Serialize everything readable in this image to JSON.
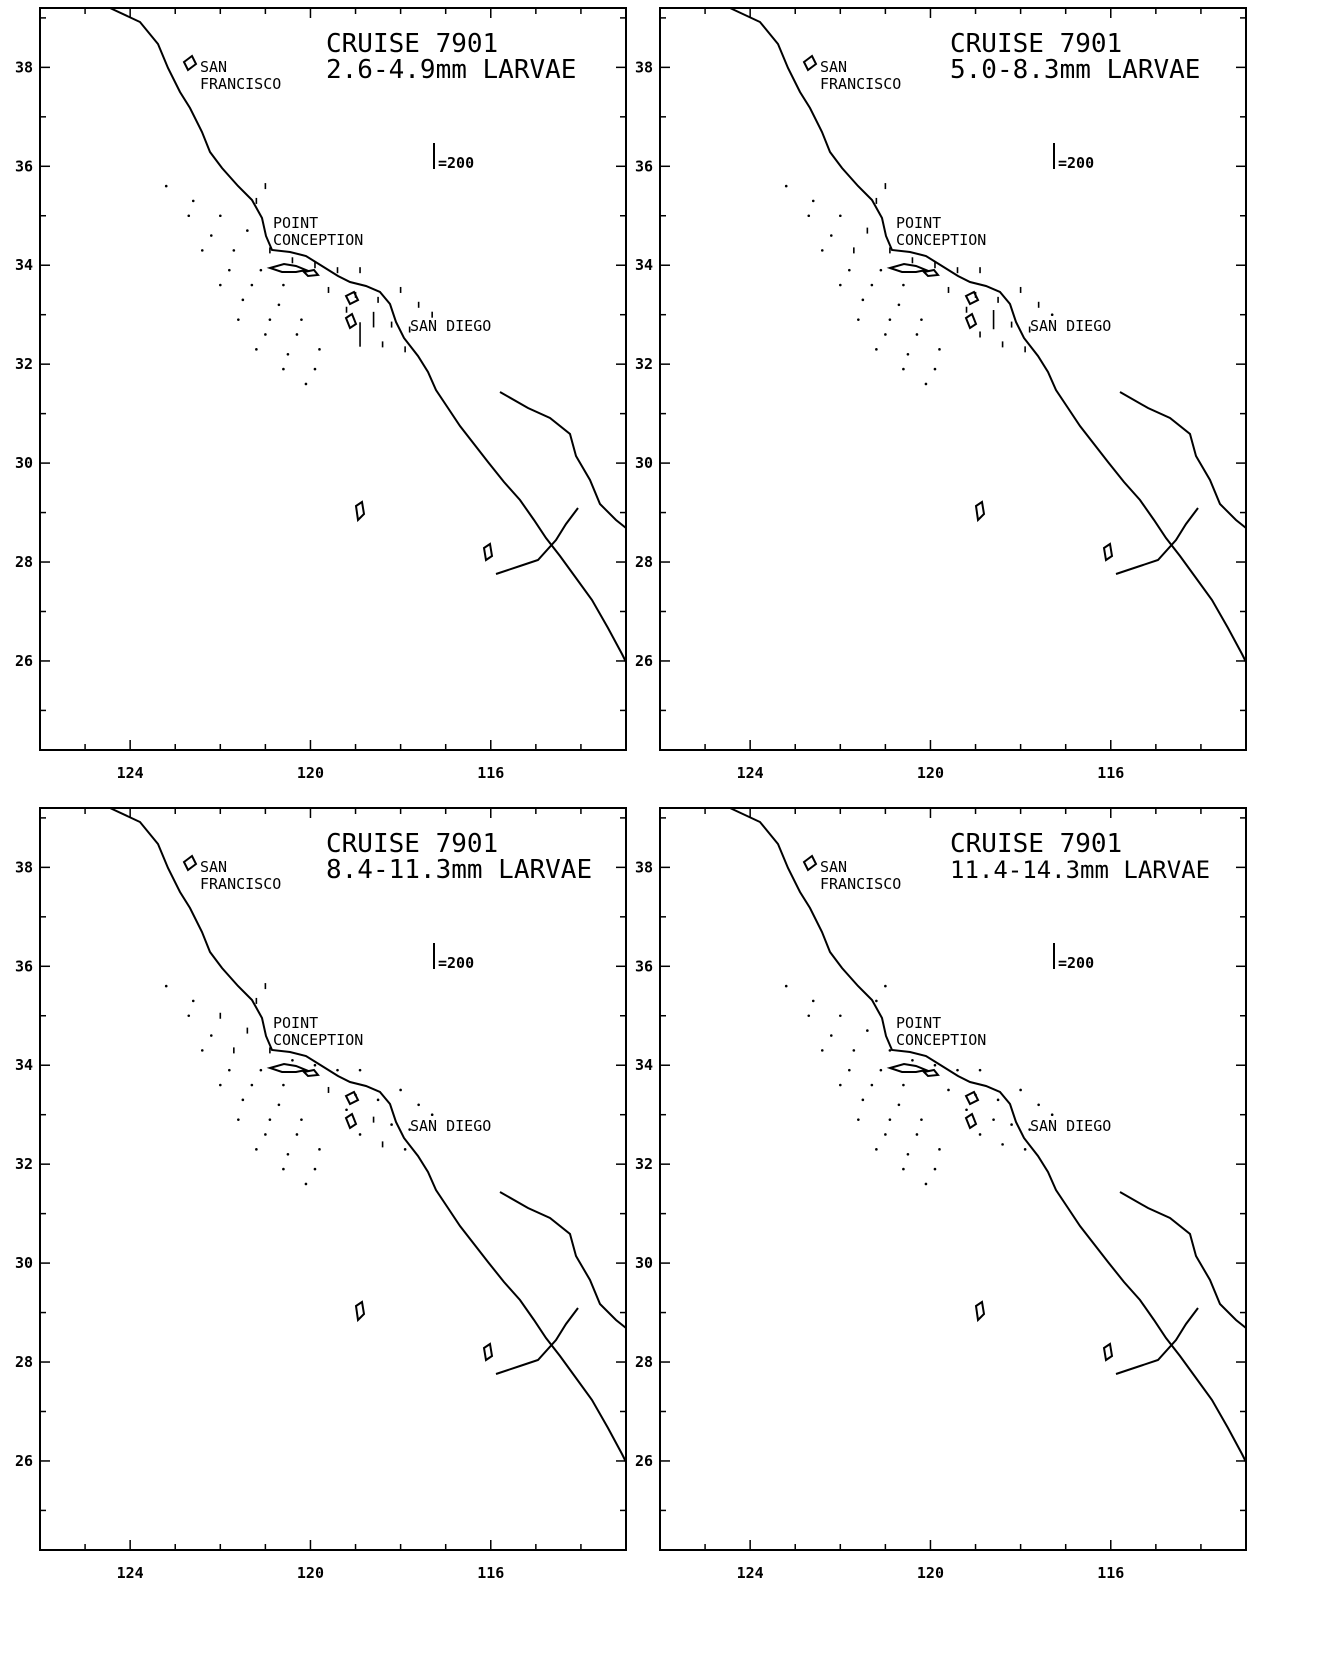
{
  "figure": {
    "panels": [
      {
        "cruise_label": "CRUISE 7901",
        "size_label": "2.6-4.9mm LARVAE",
        "stations": [
          [
            -123.2,
            35.6,
            0
          ],
          [
            -122.6,
            35.3,
            0
          ],
          [
            -122.0,
            35.0,
            0
          ],
          [
            -121.4,
            34.7,
            0
          ],
          [
            -121.2,
            35.3,
            3
          ],
          [
            -121.0,
            35.6,
            5
          ],
          [
            -122.7,
            35.0,
            0
          ],
          [
            -122.2,
            34.6,
            0
          ],
          [
            -121.7,
            34.3,
            0
          ],
          [
            -121.1,
            33.9,
            0
          ],
          [
            -120.6,
            33.6,
            0
          ],
          [
            -122.4,
            34.3,
            0
          ],
          [
            -121.8,
            33.9,
            0
          ],
          [
            -121.3,
            33.6,
            0
          ],
          [
            -120.7,
            33.2,
            0
          ],
          [
            -120.2,
            32.9,
            0
          ],
          [
            -122.0,
            33.6,
            0
          ],
          [
            -121.5,
            33.3,
            0
          ],
          [
            -120.9,
            32.9,
            0
          ],
          [
            -120.3,
            32.6,
            0
          ],
          [
            -119.8,
            32.3,
            0
          ],
          [
            -121.6,
            32.9,
            0
          ],
          [
            -121.0,
            32.6,
            0
          ],
          [
            -120.5,
            32.2,
            0
          ],
          [
            -119.9,
            31.9,
            0
          ],
          [
            -121.2,
            32.3,
            0
          ],
          [
            -120.6,
            31.9,
            0
          ],
          [
            -120.1,
            31.6,
            0
          ],
          [
            -120.9,
            34.3,
            4
          ],
          [
            -120.4,
            34.1,
            3
          ],
          [
            -119.9,
            34.0,
            2
          ],
          [
            -119.4,
            33.9,
            4
          ],
          [
            -118.9,
            33.9,
            3
          ],
          [
            -119.6,
            33.5,
            3
          ],
          [
            -119.0,
            33.4,
            5
          ],
          [
            -118.5,
            33.3,
            3
          ],
          [
            -118.0,
            33.5,
            5
          ],
          [
            -119.2,
            33.1,
            4
          ],
          [
            -118.6,
            32.9,
            120
          ],
          [
            -118.2,
            32.8,
            3
          ],
          [
            -117.8,
            32.7,
            4
          ],
          [
            -118.9,
            32.6,
            188
          ],
          [
            -118.4,
            32.4,
            5
          ],
          [
            -117.9,
            32.3,
            3
          ],
          [
            -117.6,
            33.2,
            4
          ],
          [
            -117.3,
            33.0,
            3
          ]
        ]
      },
      {
        "cruise_label": "CRUISE 7901",
        "size_label": "5.0-8.3mm LARVAE",
        "stations": [
          [
            -123.2,
            35.6,
            0
          ],
          [
            -122.6,
            35.3,
            0
          ],
          [
            -122.0,
            35.0,
            0
          ],
          [
            -121.4,
            34.7,
            6
          ],
          [
            -121.2,
            35.3,
            5
          ],
          [
            -121.0,
            35.6,
            8
          ],
          [
            -122.7,
            35.0,
            0
          ],
          [
            -122.2,
            34.6,
            0
          ],
          [
            -121.7,
            34.3,
            4
          ],
          [
            -121.1,
            33.9,
            0
          ],
          [
            -120.6,
            33.6,
            0
          ],
          [
            -122.4,
            34.3,
            0
          ],
          [
            -121.8,
            33.9,
            0
          ],
          [
            -121.3,
            33.6,
            0
          ],
          [
            -120.7,
            33.2,
            0
          ],
          [
            -120.2,
            32.9,
            0
          ],
          [
            -122.0,
            33.6,
            0
          ],
          [
            -121.5,
            33.3,
            0
          ],
          [
            -120.9,
            32.9,
            0
          ],
          [
            -120.3,
            32.6,
            0
          ],
          [
            -119.8,
            32.3,
            0
          ],
          [
            -121.6,
            32.9,
            0
          ],
          [
            -121.0,
            32.6,
            0
          ],
          [
            -120.5,
            32.2,
            0
          ],
          [
            -119.9,
            31.9,
            0
          ],
          [
            -121.2,
            32.3,
            0
          ],
          [
            -120.6,
            31.9,
            0
          ],
          [
            -120.1,
            31.6,
            0
          ],
          [
            -120.9,
            34.3,
            5
          ],
          [
            -120.4,
            34.1,
            4
          ],
          [
            -119.9,
            34.0,
            3
          ],
          [
            -119.4,
            33.9,
            3
          ],
          [
            -118.9,
            33.9,
            4
          ],
          [
            -119.6,
            33.5,
            5
          ],
          [
            -119.0,
            33.4,
            6
          ],
          [
            -118.5,
            33.3,
            3
          ],
          [
            -118.0,
            33.5,
            4
          ],
          [
            -119.2,
            33.1,
            5
          ],
          [
            -118.6,
            32.9,
            148
          ],
          [
            -118.2,
            32.8,
            4
          ],
          [
            -117.8,
            32.7,
            3
          ],
          [
            -118.9,
            32.6,
            6
          ],
          [
            -118.4,
            32.4,
            4
          ],
          [
            -117.9,
            32.3,
            3
          ],
          [
            -117.6,
            33.2,
            4
          ],
          [
            -117.3,
            33.0,
            0
          ]
        ]
      },
      {
        "cruise_label": "CRUISE 7901",
        "size_label": "8.4-11.3mm LARVAE",
        "stations": [
          [
            -123.2,
            35.6,
            0
          ],
          [
            -122.6,
            35.3,
            0
          ],
          [
            -122.0,
            35.0,
            3
          ],
          [
            -121.4,
            34.7,
            3
          ],
          [
            -121.2,
            35.3,
            4
          ],
          [
            -121.0,
            35.6,
            5
          ],
          [
            -122.7,
            35.0,
            0
          ],
          [
            -122.2,
            34.6,
            0
          ],
          [
            -121.7,
            34.3,
            3
          ],
          [
            -121.1,
            33.9,
            0
          ],
          [
            -120.6,
            33.6,
            0
          ],
          [
            -122.4,
            34.3,
            0
          ],
          [
            -121.8,
            33.9,
            0
          ],
          [
            -121.3,
            33.6,
            0
          ],
          [
            -120.7,
            33.2,
            0
          ],
          [
            -120.2,
            32.9,
            0
          ],
          [
            -122.0,
            33.6,
            0
          ],
          [
            -121.5,
            33.3,
            0
          ],
          [
            -120.9,
            32.9,
            0
          ],
          [
            -120.3,
            32.6,
            0
          ],
          [
            -119.8,
            32.3,
            0
          ],
          [
            -121.6,
            32.9,
            0
          ],
          [
            -121.0,
            32.6,
            0
          ],
          [
            -120.5,
            32.2,
            0
          ],
          [
            -119.9,
            31.9,
            0
          ],
          [
            -121.2,
            32.3,
            0
          ],
          [
            -120.6,
            31.9,
            0
          ],
          [
            -120.1,
            31.6,
            0
          ],
          [
            -120.9,
            34.3,
            3
          ],
          [
            -120.4,
            34.1,
            0
          ],
          [
            -119.9,
            34.0,
            0
          ],
          [
            -119.4,
            33.9,
            0
          ],
          [
            -118.9,
            33.9,
            0
          ],
          [
            -119.6,
            33.5,
            3
          ],
          [
            -119.0,
            33.4,
            0
          ],
          [
            -118.5,
            33.3,
            0
          ],
          [
            -118.0,
            33.5,
            0
          ],
          [
            -119.2,
            33.1,
            0
          ],
          [
            -118.6,
            32.9,
            3
          ],
          [
            -118.2,
            32.8,
            0
          ],
          [
            -117.8,
            32.7,
            0
          ],
          [
            -118.9,
            32.6,
            0
          ],
          [
            -118.4,
            32.4,
            3
          ],
          [
            -117.9,
            32.3,
            0
          ],
          [
            -117.6,
            33.2,
            0
          ],
          [
            -117.3,
            33.0,
            0
          ]
        ]
      },
      {
        "cruise_label": "CRUISE 7901",
        "size_label": "11.4-14.3mm LARVAE",
        "stations": [
          [
            -123.2,
            35.6,
            0
          ],
          [
            -122.6,
            35.3,
            0
          ],
          [
            -122.0,
            35.0,
            0
          ],
          [
            -121.4,
            34.7,
            0
          ],
          [
            -121.2,
            35.3,
            0
          ],
          [
            -121.0,
            35.6,
            0
          ],
          [
            -122.7,
            35.0,
            0
          ],
          [
            -122.2,
            34.6,
            0
          ],
          [
            -121.7,
            34.3,
            0
          ],
          [
            -121.1,
            33.9,
            0
          ],
          [
            -120.6,
            33.6,
            0
          ],
          [
            -122.4,
            34.3,
            0
          ],
          [
            -121.8,
            33.9,
            0
          ],
          [
            -121.3,
            33.6,
            0
          ],
          [
            -120.7,
            33.2,
            0
          ],
          [
            -120.2,
            32.9,
            0
          ],
          [
            -122.0,
            33.6,
            0
          ],
          [
            -121.5,
            33.3,
            0
          ],
          [
            -120.9,
            32.9,
            0
          ],
          [
            -120.3,
            32.6,
            0
          ],
          [
            -119.8,
            32.3,
            0
          ],
          [
            -121.6,
            32.9,
            0
          ],
          [
            -121.0,
            32.6,
            0
          ],
          [
            -120.5,
            32.2,
            0
          ],
          [
            -119.9,
            31.9,
            0
          ],
          [
            -121.2,
            32.3,
            0
          ],
          [
            -120.6,
            31.9,
            0
          ],
          [
            -120.1,
            31.6,
            0
          ],
          [
            -120.9,
            34.3,
            0
          ],
          [
            -120.4,
            34.1,
            0
          ],
          [
            -119.9,
            34.0,
            0
          ],
          [
            -119.4,
            33.9,
            0
          ],
          [
            -118.9,
            33.9,
            0
          ],
          [
            -119.6,
            33.5,
            0
          ],
          [
            -119.0,
            33.4,
            0
          ],
          [
            -118.5,
            33.3,
            0
          ],
          [
            -118.0,
            33.5,
            0
          ],
          [
            -119.2,
            33.1,
            0
          ],
          [
            -118.6,
            32.9,
            0
          ],
          [
            -118.2,
            32.8,
            0
          ],
          [
            -117.8,
            32.7,
            0
          ],
          [
            -118.9,
            32.6,
            0
          ],
          [
            -118.4,
            32.4,
            0
          ],
          [
            -117.9,
            32.3,
            0
          ],
          [
            -117.6,
            33.2,
            0
          ],
          [
            -117.3,
            33.0,
            0
          ]
        ]
      }
    ],
    "place_labels": {
      "san": "SAN",
      "francisco": "FRANCISCO",
      "point": "POINT",
      "conception": "CONCEPTION",
      "san_diego": "SAN DIEGO"
    },
    "scale_label": "=200",
    "scale_value": 200,
    "x_ticks": [
      "124",
      "120",
      "116"
    ],
    "y_ticks": [
      "38",
      "36",
      "34",
      "32",
      "30",
      "28",
      "26"
    ],
    "x_tick_values": [
      124,
      120,
      116
    ],
    "y_tick_values": [
      38,
      36,
      34,
      32,
      30,
      28,
      26
    ],
    "lon_range": [
      -126,
      -113
    ],
    "lat_range": [
      24.2,
      39.2
    ]
  }
}
